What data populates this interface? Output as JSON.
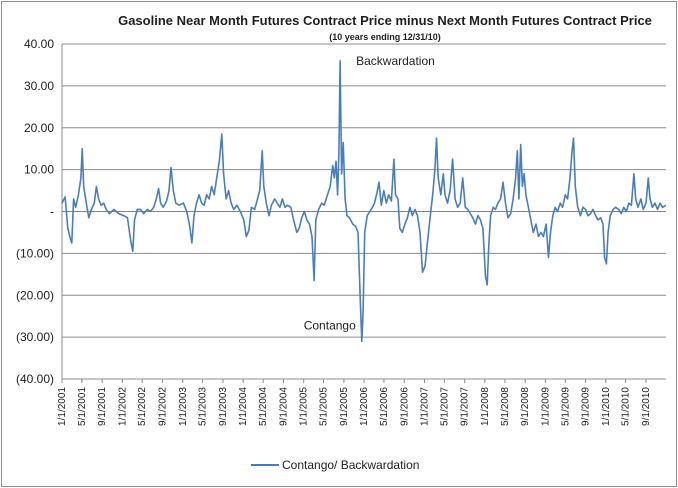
{
  "chart_data": {
    "type": "line",
    "title": "Gasoline  Near Month Futures Contract Price minus  Next Month Futures Contract Price",
    "subtitle": "(10 years ending 12/31/10)",
    "xlabel": "",
    "ylabel": "",
    "ylim": [
      -40,
      40
    ],
    "xlim": [
      "2001-01-01",
      "2010-12-31"
    ],
    "yticks": [
      40,
      30,
      20,
      10,
      0,
      -10,
      -20,
      -30,
      -40
    ],
    "ytick_labels": [
      "40.00",
      "30.00",
      "20.00",
      "10.00",
      "-",
      "(10.00)",
      "(20.00)",
      "(30.00)",
      "(40.00)"
    ],
    "xtick_dates": [
      "2001-01-01",
      "2001-05-01",
      "2001-09-01",
      "2002-01-01",
      "2002-05-01",
      "2002-09-01",
      "2003-01-01",
      "2003-05-01",
      "2003-09-01",
      "2004-01-01",
      "2004-05-01",
      "2004-09-01",
      "2005-01-01",
      "2005-05-01",
      "2005-09-01",
      "2006-01-01",
      "2006-05-01",
      "2006-09-01",
      "2007-01-01",
      "2007-05-01",
      "2007-09-01",
      "2008-01-01",
      "2008-05-01",
      "2008-09-01",
      "2009-01-01",
      "2009-05-01",
      "2009-09-01",
      "2010-01-01",
      "2010-05-01",
      "2010-09-01"
    ],
    "xtick_labels": [
      "1/1/2001",
      "5/1/2001",
      "9/1/2001",
      "1/1/2002",
      "5/1/2002",
      "9/1/2002",
      "1/1/2003",
      "5/1/2003",
      "9/1/2003",
      "1/1/2004",
      "5/1/2004",
      "9/1/2004",
      "1/1/2005",
      "5/1/2005",
      "9/1/2005",
      "1/1/2006",
      "5/1/2006",
      "9/1/2006",
      "1/1/2007",
      "5/1/2007",
      "9/1/2007",
      "1/1/2008",
      "5/1/2008",
      "9/1/2008",
      "1/1/2009",
      "5/1/2009",
      "9/1/2009",
      "1/1/2010",
      "5/1/2010",
      "9/1/2010"
    ],
    "grid": true,
    "legend_position": "bottom",
    "series": [
      {
        "name": "Contango/ Backwardation",
        "color": "#4a7ebb",
        "points": [
          [
            "2001-01-01",
            2
          ],
          [
            "2001-01-20",
            3.5
          ],
          [
            "2001-02-05",
            -4
          ],
          [
            "2001-02-20",
            -6.5
          ],
          [
            "2001-03-01",
            -7.5
          ],
          [
            "2001-03-12",
            3
          ],
          [
            "2001-03-25",
            1
          ],
          [
            "2001-04-10",
            4
          ],
          [
            "2001-04-25",
            8
          ],
          [
            "2001-05-03",
            15
          ],
          [
            "2001-05-12",
            6
          ],
          [
            "2001-05-28",
            2
          ],
          [
            "2001-06-12",
            -1.5
          ],
          [
            "2001-06-28",
            0.5
          ],
          [
            "2001-07-15",
            2
          ],
          [
            "2001-07-28",
            6
          ],
          [
            "2001-08-10",
            3
          ],
          [
            "2001-08-25",
            1.5
          ],
          [
            "2001-09-10",
            2
          ],
          [
            "2001-09-25",
            0.5
          ],
          [
            "2001-10-15",
            -0.5
          ],
          [
            "2001-11-10",
            0.5
          ],
          [
            "2001-12-10",
            -0.5
          ],
          [
            "2002-01-10",
            -1
          ],
          [
            "2002-02-01",
            -1.5
          ],
          [
            "2002-02-20",
            -7
          ],
          [
            "2002-03-05",
            -9.5
          ],
          [
            "2002-03-15",
            -2
          ],
          [
            "2002-04-01",
            0.5
          ],
          [
            "2002-04-20",
            0.5
          ],
          [
            "2002-05-10",
            -0.5
          ],
          [
            "2002-06-01",
            0.5
          ],
          [
            "2002-06-20",
            0
          ],
          [
            "2002-07-10",
            1
          ],
          [
            "2002-07-25",
            3
          ],
          [
            "2002-08-08",
            5.5
          ],
          [
            "2002-08-20",
            2
          ],
          [
            "2002-09-05",
            1
          ],
          [
            "2002-09-25",
            2.5
          ],
          [
            "2002-10-10",
            5
          ],
          [
            "2002-10-22",
            10.5
          ],
          [
            "2002-11-05",
            5
          ],
          [
            "2002-11-20",
            2
          ],
          [
            "2002-12-10",
            1.5
          ],
          [
            "2003-01-05",
            2
          ],
          [
            "2003-01-25",
            0
          ],
          [
            "2003-02-10",
            -3
          ],
          [
            "2003-02-25",
            -7.5
          ],
          [
            "2003-03-10",
            -1
          ],
          [
            "2003-03-25",
            2
          ],
          [
            "2003-04-10",
            4
          ],
          [
            "2003-04-25",
            2
          ],
          [
            "2003-05-10",
            1.5
          ],
          [
            "2003-05-25",
            4
          ],
          [
            "2003-06-10",
            3
          ],
          [
            "2003-06-25",
            6
          ],
          [
            "2003-07-10",
            4
          ],
          [
            "2003-07-25",
            8
          ],
          [
            "2003-08-10",
            12
          ],
          [
            "2003-08-25",
            18.5
          ],
          [
            "2003-09-05",
            9
          ],
          [
            "2003-09-20",
            3
          ],
          [
            "2003-10-05",
            5
          ],
          [
            "2003-10-20",
            2
          ],
          [
            "2003-11-05",
            0.5
          ],
          [
            "2003-11-25",
            1.5
          ],
          [
            "2003-12-15",
            0
          ],
          [
            "2004-01-05",
            -2
          ],
          [
            "2004-01-20",
            -6
          ],
          [
            "2004-02-05",
            -4.5
          ],
          [
            "2004-02-20",
            1
          ],
          [
            "2004-03-10",
            0.5
          ],
          [
            "2004-03-25",
            2.5
          ],
          [
            "2004-04-10",
            5
          ],
          [
            "2004-04-25",
            14.5
          ],
          [
            "2004-05-05",
            6
          ],
          [
            "2004-05-20",
            2
          ],
          [
            "2004-06-05",
            -1
          ],
          [
            "2004-06-20",
            1.5
          ],
          [
            "2004-07-10",
            3
          ],
          [
            "2004-07-25",
            2
          ],
          [
            "2004-08-10",
            1
          ],
          [
            "2004-08-25",
            3
          ],
          [
            "2004-09-10",
            1
          ],
          [
            "2004-09-25",
            1.5
          ],
          [
            "2004-10-15",
            1
          ],
          [
            "2004-11-01",
            -2
          ],
          [
            "2004-11-20",
            -5
          ],
          [
            "2004-12-05",
            -4
          ],
          [
            "2004-12-20",
            -1.5
          ],
          [
            "2005-01-05",
            0
          ],
          [
            "2005-01-20",
            -2
          ],
          [
            "2005-02-05",
            -3
          ],
          [
            "2005-02-20",
            -6
          ],
          [
            "2005-03-05",
            -16.5
          ],
          [
            "2005-03-15",
            -2
          ],
          [
            "2005-04-01",
            0.5
          ],
          [
            "2005-04-20",
            2
          ],
          [
            "2005-05-05",
            1.5
          ],
          [
            "2005-05-25",
            4
          ],
          [
            "2005-06-10",
            6
          ],
          [
            "2005-06-25",
            11
          ],
          [
            "2005-07-05",
            8
          ],
          [
            "2005-07-15",
            12
          ],
          [
            "2005-07-25",
            4
          ],
          [
            "2005-08-02",
            14
          ],
          [
            "2005-08-09",
            36
          ],
          [
            "2005-08-18",
            9
          ],
          [
            "2005-08-28",
            16.5
          ],
          [
            "2005-09-08",
            3
          ],
          [
            "2005-09-20",
            -1
          ],
          [
            "2005-10-05",
            -1.5
          ],
          [
            "2005-10-25",
            -3
          ],
          [
            "2005-11-10",
            -3.5
          ],
          [
            "2005-11-25",
            -5
          ],
          [
            "2005-12-10",
            -22
          ],
          [
            "2005-12-18",
            -31
          ],
          [
            "2005-12-26",
            -24
          ],
          [
            "2006-01-05",
            -5
          ],
          [
            "2006-01-20",
            -1
          ],
          [
            "2006-02-05",
            0
          ],
          [
            "2006-02-20",
            1
          ],
          [
            "2006-03-05",
            2
          ],
          [
            "2006-03-20",
            4.5
          ],
          [
            "2006-04-01",
            7
          ],
          [
            "2006-04-15",
            1.5
          ],
          [
            "2006-04-30",
            5
          ],
          [
            "2006-05-15",
            2
          ],
          [
            "2006-05-30",
            4
          ],
          [
            "2006-06-15",
            2.5
          ],
          [
            "2006-06-30",
            12.5
          ],
          [
            "2006-07-10",
            4
          ],
          [
            "2006-07-25",
            3
          ],
          [
            "2006-08-05",
            -4
          ],
          [
            "2006-08-20",
            -5
          ],
          [
            "2006-09-05",
            -3
          ],
          [
            "2006-09-20",
            -1.5
          ],
          [
            "2006-10-05",
            1
          ],
          [
            "2006-10-20",
            -1
          ],
          [
            "2006-11-05",
            0.5
          ],
          [
            "2006-11-20",
            -1
          ],
          [
            "2006-12-05",
            -5
          ],
          [
            "2006-12-20",
            -14.5
          ],
          [
            "2007-01-05",
            -13
          ],
          [
            "2007-01-20",
            -7
          ],
          [
            "2007-02-05",
            -1
          ],
          [
            "2007-02-20",
            4
          ],
          [
            "2007-03-05",
            10
          ],
          [
            "2007-03-15",
            17.5
          ],
          [
            "2007-03-25",
            8
          ],
          [
            "2007-04-10",
            4
          ],
          [
            "2007-04-25",
            9
          ],
          [
            "2007-05-05",
            4
          ],
          [
            "2007-05-20",
            2
          ],
          [
            "2007-06-05",
            5
          ],
          [
            "2007-06-20",
            12.5
          ],
          [
            "2007-07-05",
            3
          ],
          [
            "2007-07-20",
            1
          ],
          [
            "2007-08-05",
            2
          ],
          [
            "2007-08-20",
            8
          ],
          [
            "2007-09-05",
            1
          ],
          [
            "2007-09-20",
            0.5
          ],
          [
            "2007-10-05",
            -0.5
          ],
          [
            "2007-10-20",
            -1.5
          ],
          [
            "2007-11-05",
            -3
          ],
          [
            "2007-11-20",
            -1
          ],
          [
            "2007-12-05",
            -2
          ],
          [
            "2007-12-20",
            -4
          ],
          [
            "2008-01-05",
            -15.5
          ],
          [
            "2008-01-15",
            -17.5
          ],
          [
            "2008-01-25",
            -8
          ],
          [
            "2008-02-05",
            -1
          ],
          [
            "2008-02-20",
            1
          ],
          [
            "2008-03-05",
            0.5
          ],
          [
            "2008-03-20",
            2
          ],
          [
            "2008-04-05",
            3
          ],
          [
            "2008-04-20",
            7
          ],
          [
            "2008-05-05",
            2
          ],
          [
            "2008-05-20",
            -1.5
          ],
          [
            "2008-06-05",
            -0.5
          ],
          [
            "2008-06-20",
            3
          ],
          [
            "2008-07-05",
            8
          ],
          [
            "2008-07-15",
            14.5
          ],
          [
            "2008-07-25",
            3
          ],
          [
            "2008-08-05",
            16
          ],
          [
            "2008-08-15",
            6
          ],
          [
            "2008-08-25",
            9
          ],
          [
            "2008-09-05",
            4
          ],
          [
            "2008-09-20",
            1
          ],
          [
            "2008-10-05",
            -2
          ],
          [
            "2008-10-20",
            -5
          ],
          [
            "2008-11-05",
            -3
          ],
          [
            "2008-11-20",
            -6
          ],
          [
            "2008-12-05",
            -5
          ],
          [
            "2008-12-20",
            -6
          ],
          [
            "2009-01-05",
            -3
          ],
          [
            "2009-01-20",
            -11
          ],
          [
            "2009-02-01",
            -5
          ],
          [
            "2009-02-15",
            -1
          ],
          [
            "2009-03-01",
            1
          ],
          [
            "2009-03-15",
            0
          ],
          [
            "2009-04-01",
            2
          ],
          [
            "2009-04-15",
            1
          ],
          [
            "2009-05-01",
            4
          ],
          [
            "2009-05-15",
            3
          ],
          [
            "2009-05-30",
            8
          ],
          [
            "2009-06-10",
            14
          ],
          [
            "2009-06-20",
            17.5
          ],
          [
            "2009-07-01",
            6
          ],
          [
            "2009-07-15",
            1
          ],
          [
            "2009-08-01",
            -1
          ],
          [
            "2009-08-15",
            1
          ],
          [
            "2009-09-01",
            0.5
          ],
          [
            "2009-09-15",
            -1
          ],
          [
            "2009-10-01",
            -0.5
          ],
          [
            "2009-10-15",
            0.5
          ],
          [
            "2009-11-01",
            -1
          ],
          [
            "2009-11-15",
            -2
          ],
          [
            "2009-12-01",
            -1.5
          ],
          [
            "2009-12-15",
            -3
          ],
          [
            "2009-12-25",
            -11
          ],
          [
            "2010-01-05",
            -12.5
          ],
          [
            "2010-01-15",
            -5
          ],
          [
            "2010-01-28",
            -1
          ],
          [
            "2010-02-15",
            0.5
          ],
          [
            "2010-03-01",
            1
          ],
          [
            "2010-03-20",
            0.5
          ],
          [
            "2010-04-05",
            -0.5
          ],
          [
            "2010-04-20",
            1
          ],
          [
            "2010-05-05",
            0
          ],
          [
            "2010-05-20",
            2
          ],
          [
            "2010-06-05",
            1.5
          ],
          [
            "2010-06-20",
            9
          ],
          [
            "2010-07-01",
            3
          ],
          [
            "2010-07-15",
            1
          ],
          [
            "2010-08-01",
            3
          ],
          [
            "2010-08-15",
            0.5
          ],
          [
            "2010-09-01",
            2
          ],
          [
            "2010-09-15",
            8
          ],
          [
            "2010-09-25",
            3
          ],
          [
            "2010-10-10",
            1
          ],
          [
            "2010-10-25",
            2
          ],
          [
            "2010-11-10",
            0.5
          ],
          [
            "2010-11-25",
            2
          ],
          [
            "2010-12-10",
            1
          ],
          [
            "2010-12-31",
            1.5
          ]
        ]
      }
    ],
    "annotations": [
      {
        "text": "Backwardation",
        "x": "2005-08-09",
        "y": 36
      },
      {
        "text": "Contango",
        "x": "2005-12-18",
        "y": -31
      }
    ]
  }
}
